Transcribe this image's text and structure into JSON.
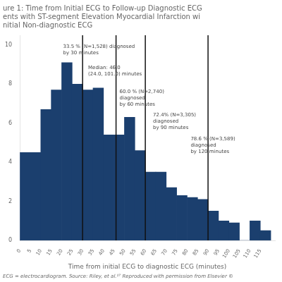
{
  "chart_data": {
    "type": "bar",
    "title": "ure 1: Time from Initial ECG to Follow-up Diagnostic ECG\nents with ST-segment Elevation Myocardial Infarction wi\nnitial Non-diagnostic ECG",
    "x_label": "Time from initial ECG to diagnostic ECG (minutes)",
    "footnote": "ECG = electrocardiogram. Source: Riley, et al.¹⁷ Reproduced with permission from Elsevier ©",
    "bins": [
      0,
      5,
      10,
      15,
      20,
      25,
      30,
      35,
      40,
      45,
      50,
      55,
      60,
      65,
      70,
      75,
      80,
      85,
      90,
      95,
      100,
      105,
      110,
      115,
      120
    ],
    "values": [
      4.5,
      4.5,
      6.7,
      7.7,
      9.1,
      8.0,
      7.7,
      7.8,
      5.4,
      5.4,
      6.3,
      4.6,
      3.5,
      3.5,
      2.7,
      2.3,
      2.2,
      2.1,
      1.5,
      1.0,
      0.9,
      0.0,
      1.0,
      0.5
    ],
    "color": "#1b3f6e",
    "xlim": [
      0,
      122
    ],
    "ylim": [
      0,
      10.5
    ],
    "xticks": [
      0,
      5,
      10,
      15,
      20,
      25,
      30,
      35,
      40,
      45,
      50,
      55,
      60,
      65,
      70,
      75,
      80,
      85,
      90,
      95,
      100,
      105,
      110,
      115
    ],
    "yticks": [
      0,
      2,
      4,
      6,
      8,
      10
    ],
    "grid": false,
    "vlines": [
      30,
      46,
      60,
      90
    ],
    "annotations": [
      {
        "text": "33.5 % (N=1,528) diagnosed\nby 30 minutes",
        "x": 20,
        "y": 10.05
      },
      {
        "text": "Median: 46.0\n(24.0, 101.0) minutes",
        "x": 32,
        "y": 8.95
      },
      {
        "text": "60.0 % (N=2,740)\ndiagnosed\nby 60 minutes",
        "x": 47,
        "y": 7.75
      },
      {
        "text": "72.4% (N=3,305)\ndiagnosed\nby 90 minutes",
        "x": 63,
        "y": 6.55
      },
      {
        "text": "78.6 % (N=3,589)\ndiagnosed\nby 120 minutes",
        "x": 81,
        "y": 5.3
      }
    ]
  }
}
